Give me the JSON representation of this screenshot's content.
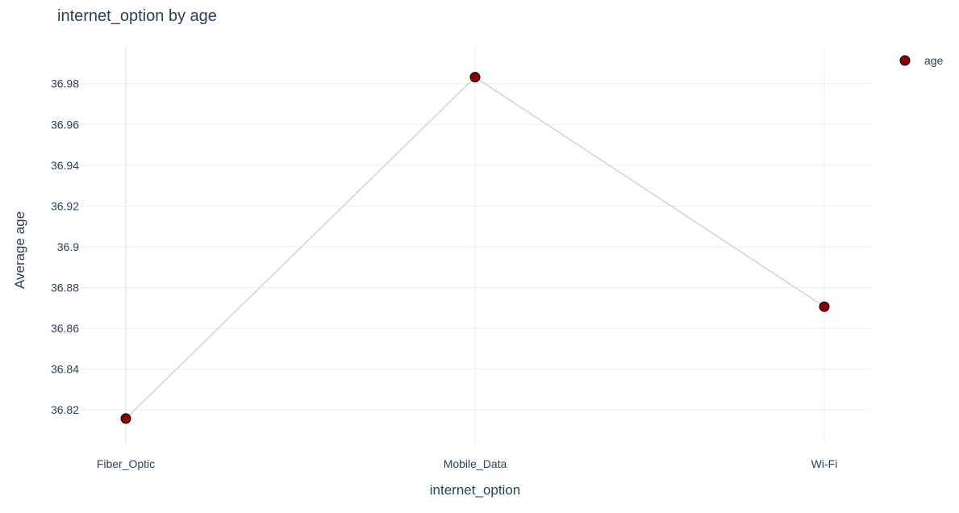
{
  "chart_data": {
    "type": "line",
    "title": "internet_option by age",
    "xlabel": "internet_option",
    "ylabel": "Average age",
    "categories": [
      "Fiber_Optic",
      "Mobile_Data",
      "Wi-Fi"
    ],
    "series": [
      {
        "name": "age",
        "values": [
          36.8157,
          36.9832,
          36.8706
        ]
      }
    ],
    "ylim": [
      36.8038,
      36.9985
    ],
    "yticks": [
      36.82,
      36.84,
      36.86,
      36.88,
      36.9,
      36.92,
      36.94,
      36.96,
      36.98
    ],
    "ytick_labels": [
      "36.82",
      "36.84",
      "36.86",
      "36.88",
      "36.9",
      "36.92",
      "36.94",
      "36.96",
      "36.98"
    ],
    "grid": true,
    "legend": "top-right",
    "colors": {
      "marker": "#8b0000",
      "marker_edge": "#000000",
      "line": "#d3d3d3",
      "grid": "#ebedf2"
    }
  }
}
